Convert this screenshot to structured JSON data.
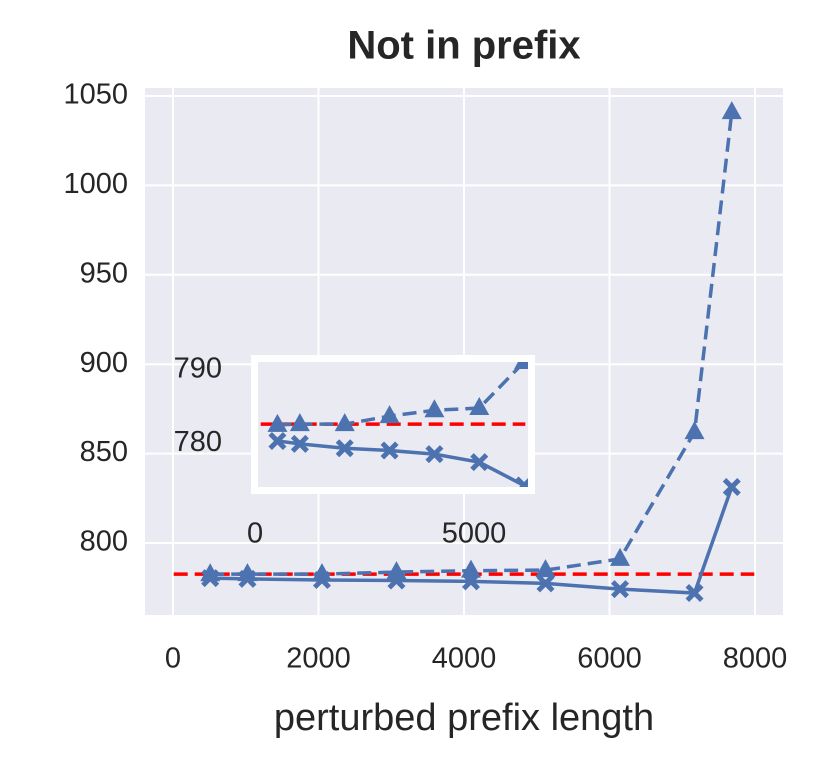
{
  "chart_data": [
    {
      "type": "line",
      "title": "Not in prefix",
      "xlabel": "perturbed prefix length",
      "xlim": [
        -384,
        8384
      ],
      "ylim": [
        759.7,
        1054.5
      ],
      "xticks": [
        0,
        2000,
        4000,
        6000,
        8000
      ],
      "yticks": [
        800,
        850,
        900,
        950,
        1000,
        1050
      ],
      "grid": true,
      "background": "#eaeaf2",
      "hline": {
        "y": 782.6,
        "color": "#ff0000",
        "linestyle": "dashed"
      },
      "series": [
        {
          "color": "#4c72b0",
          "marker": "triangle",
          "linestyle": "dashed",
          "x": [
            512,
            1024,
            2048,
            3072,
            4096,
            5120,
            6144,
            7168,
            7680
          ],
          "values": [
            782.5,
            782.6,
            782.6,
            783.7,
            784.5,
            784.8,
            791.1,
            862,
            1041
          ]
        },
        {
          "color": "#4c72b0",
          "marker": "cross",
          "linestyle": "solid",
          "x": [
            512,
            1024,
            2048,
            3072,
            4096,
            5120,
            6144,
            7168,
            7680
          ],
          "values": [
            780.3,
            779.9,
            779.3,
            779,
            778.5,
            777.4,
            774.2,
            772,
            831.3
          ]
        }
      ]
    },
    {
      "type": "line",
      "xlim": [
        68,
        6233
      ],
      "ylim": [
        774,
        791.1
      ],
      "xticks": [
        0,
        5000
      ],
      "yticks": [
        780,
        790
      ],
      "grid": false,
      "background": "#eaeaf2",
      "hline": {
        "y": 782.6,
        "color": "#ff0000",
        "linestyle": "dashed"
      },
      "series": [
        {
          "color": "#4c72b0",
          "marker": "triangle",
          "linestyle": "dashed",
          "x": [
            512,
            1024,
            2048,
            3072,
            4096,
            5120,
            6144
          ],
          "values": [
            782.5,
            782.6,
            782.6,
            783.7,
            784.5,
            784.8,
            791.1
          ]
        },
        {
          "color": "#4c72b0",
          "marker": "cross",
          "linestyle": "solid",
          "x": [
            512,
            1024,
            2048,
            3072,
            4096,
            5120,
            6144
          ],
          "values": [
            780.3,
            779.9,
            779.3,
            779,
            778.5,
            777.4,
            774.2
          ]
        }
      ]
    }
  ]
}
